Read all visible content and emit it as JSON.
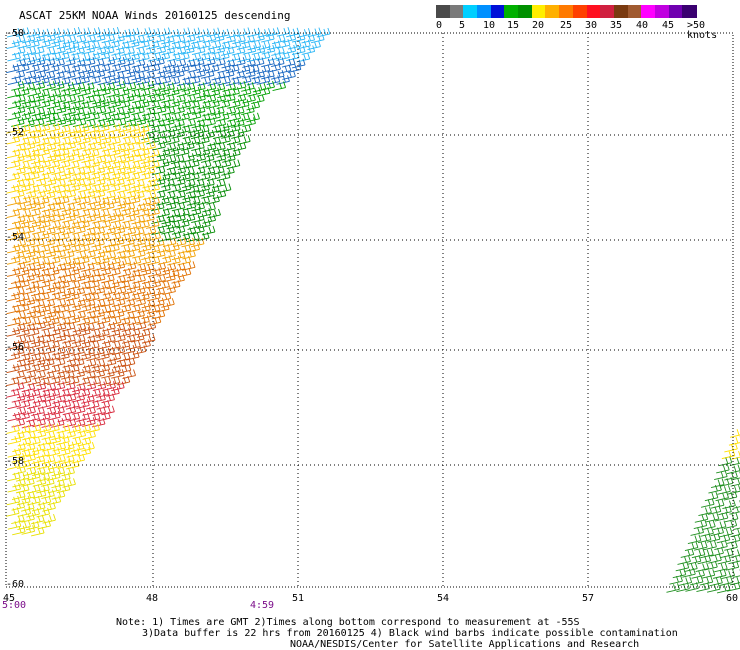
{
  "title": "ASCAT 25KM NOAA Winds 20160125 descending",
  "colorbar": {
    "ticks": [
      "0",
      "5",
      "10",
      "15",
      "20",
      "25",
      "30",
      "35",
      "40",
      "45",
      ">50 knots"
    ],
    "colors": [
      "#4a4a4a",
      "#7a7a7a",
      "#00cfff",
      "#0090ff",
      "#0010d8",
      "#00b000",
      "#009000",
      "#ffee00",
      "#ffb000",
      "#ff7a00",
      "#ff4000",
      "#ff1020",
      "#d02040",
      "#7a3a10",
      "#a05a30",
      "#ff00ff",
      "#c000e0",
      "#7000b0",
      "#3a0070"
    ]
  },
  "lat_labels": [
    "-50",
    "-52",
    "-54",
    "-56",
    "-58",
    "-60"
  ],
  "lon_labels": [
    "45",
    "48",
    "51",
    "54",
    "57",
    "60"
  ],
  "time_labels": [
    "5:00",
    "4:59"
  ],
  "notes": {
    "line1": "Note: 1) Times are GMT 2)Times along bottom correspond to measurement at -55S",
    "line2": "3)Data buffer is 22 hrs from 20160125 4) Black wind barbs indicate possible contamination",
    "line3": "NOAA/NESDIS/Center for Satellite Applications and Research"
  }
}
